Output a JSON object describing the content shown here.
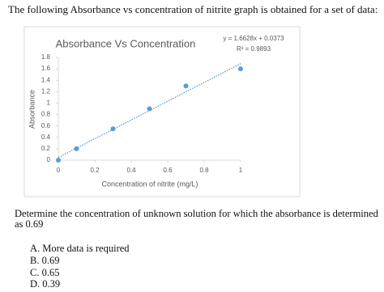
{
  "question": "The following Absorbance vs concentration of nitrite graph is obtained for a set of data:",
  "chart": {
    "type": "scatter",
    "title": "Absorbance Vs Concentration",
    "trendline_equation": "y = 1.6628x + 0.0373",
    "trendline_r2": "R² = 0.9893",
    "x_label": "Concentration of nitrite (mg/L)",
    "y_label": "Absorbance",
    "x": [
      0,
      0.1,
      0.3,
      0.5,
      0.7,
      1
    ],
    "values": [
      0,
      0.2,
      0.55,
      0.9,
      1.3,
      1.6
    ],
    "color": "#5b9bd5",
    "xlim": [
      0,
      1
    ],
    "ylim": [
      0,
      1.8
    ],
    "xticks": [
      0,
      0.2,
      0.4,
      0.6,
      0.8,
      1
    ],
    "yticks": [
      0,
      0.2,
      0.4,
      0.6,
      0.8,
      1,
      1.2,
      1.4,
      1.6,
      1.8
    ]
  },
  "prompt": "Determine the concentration of unknown solution for which the absorbance is determined as 0.69",
  "options": [
    "A.  More data is required",
    "B.  0.69",
    "C.  0.65",
    "D.  0.39"
  ]
}
